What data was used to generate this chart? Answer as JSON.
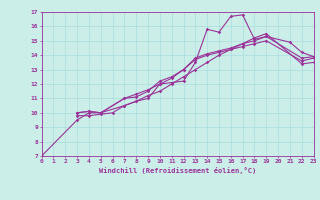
{
  "xlabel": "Windchill (Refroidissement éolien,°C)",
  "bg_color": "#cceee8",
  "line_color": "#993399",
  "grid_color": "#aadddd",
  "curves": [
    {
      "x": [
        0,
        3,
        4,
        5,
        7,
        8,
        9,
        10,
        11,
        12,
        13,
        14,
        15,
        16,
        17,
        18,
        19,
        21,
        22,
        23
      ],
      "y": [
        7.0,
        9.5,
        10.0,
        10.0,
        10.5,
        10.8,
        11.0,
        12.0,
        12.1,
        12.2,
        13.5,
        15.8,
        15.6,
        16.7,
        16.8,
        15.1,
        15.3,
        14.9,
        14.2,
        13.9
      ]
    },
    {
      "x": [
        3,
        4,
        5,
        7,
        8,
        9,
        10,
        11,
        12,
        13,
        14,
        15,
        16,
        17,
        18,
        19,
        22,
        23
      ],
      "y": [
        10.0,
        10.1,
        10.0,
        11.0,
        11.1,
        11.5,
        12.2,
        12.5,
        13.0,
        13.8,
        14.1,
        14.3,
        14.5,
        14.8,
        15.0,
        15.3,
        13.8,
        13.9
      ]
    },
    {
      "x": [
        3,
        4,
        5,
        7,
        8,
        9,
        10,
        11,
        12,
        13,
        14,
        15,
        16,
        17,
        18,
        19,
        22,
        23
      ],
      "y": [
        10.0,
        10.1,
        10.0,
        11.0,
        11.3,
        11.6,
        12.0,
        12.4,
        13.0,
        13.7,
        14.0,
        14.2,
        14.4,
        14.6,
        14.8,
        15.0,
        13.6,
        13.8
      ]
    },
    {
      "x": [
        3,
        4,
        5,
        6,
        7,
        8,
        9,
        10,
        11,
        12,
        13,
        14,
        15,
        16,
        17,
        18,
        19,
        22,
        23
      ],
      "y": [
        9.8,
        9.8,
        9.9,
        10.0,
        10.5,
        10.8,
        11.2,
        11.5,
        12.0,
        12.5,
        13.0,
        13.5,
        14.0,
        14.4,
        14.8,
        15.2,
        15.5,
        13.4,
        13.5
      ]
    }
  ],
  "ylim": [
    7,
    17
  ],
  "xlim": [
    0,
    23
  ],
  "yticks": [
    7,
    8,
    9,
    10,
    11,
    12,
    13,
    14,
    15,
    16,
    17
  ],
  "xticks": [
    0,
    1,
    2,
    3,
    4,
    5,
    6,
    7,
    8,
    9,
    10,
    11,
    12,
    13,
    14,
    15,
    16,
    17,
    18,
    19,
    20,
    21,
    22,
    23
  ]
}
